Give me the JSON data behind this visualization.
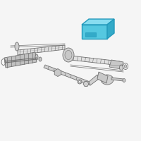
{
  "bg_color": "#f5f5f5",
  "line_color": "#707070",
  "highlight_fill": "#55c8e0",
  "highlight_edge": "#2299bb",
  "highlight_top": "#88ddf0",
  "highlight_right": "#33aac8",
  "rack_fill": "#e0e0e0",
  "rack_fill2": "#d0d0d0",
  "rack_fill3": "#c8c8c8",
  "boot_fill": "#c0c0c0",
  "joint_fill": "#d8d8d8"
}
